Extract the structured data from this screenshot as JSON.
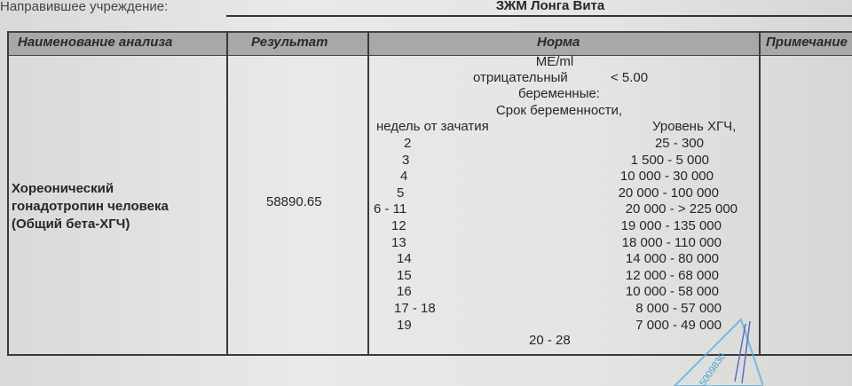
{
  "header": {
    "referring_label": "Направившее учреждение:",
    "referring_value": "ЗЖМ Лонга Вита"
  },
  "table": {
    "columns": [
      "Наименование анализа",
      "Результат",
      "Норма",
      "Примечание"
    ],
    "row": {
      "name_lines": [
        "Хореонический",
        "гонадотропин человека",
        "(Общий  бета-ХГЧ)"
      ],
      "result": "58890.65",
      "norm": {
        "unit": "МЕ/ml",
        "negative_label": "отрицательный",
        "negative_value": "< 5.00",
        "pregnant_label": "беременные:",
        "term_label": "Срок беременности,",
        "weeks_header": "недель от зачатия",
        "level_header": "Уровень ХГЧ,",
        "ranges": [
          {
            "weeks": "2",
            "level": "25 - 300"
          },
          {
            "weeks": "3",
            "level": "1 500 - 5 000"
          },
          {
            "weeks": "4",
            "level": "10 000 - 30 000"
          },
          {
            "weeks": "5",
            "level": "20 000 - 100 000"
          },
          {
            "weeks": "6 - 11",
            "level": "20 000 - > 225 000"
          },
          {
            "weeks": "12",
            "level": "19 000 - 135 000"
          },
          {
            "weeks": "13",
            "level": "18 000 - 110 000"
          },
          {
            "weeks": "14",
            "level": "14 000 - 80 000"
          },
          {
            "weeks": "15",
            "level": "12 000 - 68 000"
          },
          {
            "weeks": "16",
            "level": "10 000 - 58 000"
          },
          {
            "weeks": "17 - 18",
            "level": "8 000 - 57 000"
          },
          {
            "weeks": "19",
            "level": "7 000 - 49 000"
          }
        ],
        "trailing_weeks": "20 - 28"
      },
      "note": ""
    }
  },
  "stamp": {
    "text": "5009830",
    "color": "#4aa3d6"
  }
}
